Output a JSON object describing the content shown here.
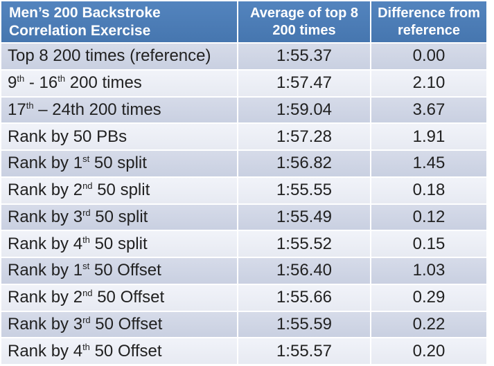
{
  "chart_data": {
    "type": "table",
    "title": "Men’s 200 Backstroke Correlation Exercise",
    "columns": [
      "Men’s 200 Backstroke Correlation Exercise",
      "Average of top 8 200 times",
      "Difference from reference"
    ],
    "rows": [
      {
        "exercise": "Top 8 200 times (reference)",
        "average": "1:55.37",
        "difference": "0.00"
      },
      {
        "exercise": "9th - 16th 200 times",
        "average": "1:57.47",
        "difference": "2.10"
      },
      {
        "exercise": "17th – 24th 200 times",
        "average": "1:59.04",
        "difference": "3.67"
      },
      {
        "exercise": "Rank by 50 PBs",
        "average": "1:57.28",
        "difference": "1.91"
      },
      {
        "exercise": "Rank by 1st 50 split",
        "average": "1:56.82",
        "difference": "1.45"
      },
      {
        "exercise": "Rank by 2nd 50 split",
        "average": "1:55.55",
        "difference": "0.18"
      },
      {
        "exercise": "Rank by 3rd 50 split",
        "average": "1:55.49",
        "difference": "0.12"
      },
      {
        "exercise": "Rank by 4th 50 split",
        "average": "1:55.52",
        "difference": "0.15"
      },
      {
        "exercise": "Rank by 1st 50 Offset",
        "average": "1:56.40",
        "difference": "1.03"
      },
      {
        "exercise": "Rank by 2nd 50 Offset",
        "average": "1:55.66",
        "difference": "0.29"
      },
      {
        "exercise": "Rank by 3rd 50 Offset",
        "average": "1:55.59",
        "difference": "0.22"
      },
      {
        "exercise": "Rank by 4th 50 Offset",
        "average": "1:55.57",
        "difference": "0.20"
      }
    ],
    "difference_seconds": [
      0,
      2.1,
      3.67,
      1.91,
      1.45,
      0.18,
      0.12,
      0.15,
      1.03,
      0.29,
      0.22,
      0.2
    ]
  },
  "colors": {
    "header_bg": "#4C7DB8",
    "header_text": "#FFFFFF",
    "band_dark": "#CDD3E4",
    "band_light": "#ECEFF6",
    "grid_line": "#FFFFFF",
    "body_text": "#212121"
  },
  "table": {
    "header": [
      "Men’s 200 Backstroke Correlation Exercise",
      "Average of top 8 200 times",
      "Difference from reference"
    ],
    "rows": [
      {
        "label_parts": [
          {
            "t": "Top 8 200 times (reference)"
          }
        ],
        "avg": "1:55.37",
        "diff": "0.00"
      },
      {
        "label_parts": [
          {
            "t": "9"
          },
          {
            "sup": "th"
          },
          {
            "t": " - 16"
          },
          {
            "sup": "th"
          },
          {
            "t": " 200 times"
          }
        ],
        "avg": "1:57.47",
        "diff": "2.10"
      },
      {
        "label_parts": [
          {
            "t": "17"
          },
          {
            "sup": "th"
          },
          {
            "t": " – 24th 200 times"
          }
        ],
        "avg": "1:59.04",
        "diff": "3.67"
      },
      {
        "label_parts": [
          {
            "t": "Rank by 50 PBs"
          }
        ],
        "avg": "1:57.28",
        "diff": "1.91"
      },
      {
        "label_parts": [
          {
            "t": "Rank by 1"
          },
          {
            "sup": "st"
          },
          {
            "t": " 50 split"
          }
        ],
        "avg": "1:56.82",
        "diff": "1.45"
      },
      {
        "label_parts": [
          {
            "t": "Rank by 2"
          },
          {
            "sup": "nd"
          },
          {
            "t": " 50 split"
          }
        ],
        "avg": "1:55.55",
        "diff": "0.18"
      },
      {
        "label_parts": [
          {
            "t": "Rank by 3"
          },
          {
            "sup": "rd"
          },
          {
            "t": " 50 split"
          }
        ],
        "avg": "1:55.49",
        "diff": "0.12"
      },
      {
        "label_parts": [
          {
            "t": "Rank by 4"
          },
          {
            "sup": "th"
          },
          {
            "t": " 50 split"
          }
        ],
        "avg": "1:55.52",
        "diff": "0.15"
      },
      {
        "label_parts": [
          {
            "t": "Rank by 1"
          },
          {
            "sup": "st"
          },
          {
            "t": " 50 Offset"
          }
        ],
        "avg": "1:56.40",
        "diff": "1.03"
      },
      {
        "label_parts": [
          {
            "t": "Rank by 2"
          },
          {
            "sup": "nd"
          },
          {
            "t": " 50 Offset"
          }
        ],
        "avg": "1:55.66",
        "diff": "0.29"
      },
      {
        "label_parts": [
          {
            "t": "Rank by 3"
          },
          {
            "sup": "rd"
          },
          {
            "t": " 50 Offset"
          }
        ],
        "avg": "1:55.59",
        "diff": "0.22"
      },
      {
        "label_parts": [
          {
            "t": "Rank by 4"
          },
          {
            "sup": "th"
          },
          {
            "t": " 50 Offset"
          }
        ],
        "avg": "1:55.57",
        "diff": "0.20"
      }
    ]
  }
}
